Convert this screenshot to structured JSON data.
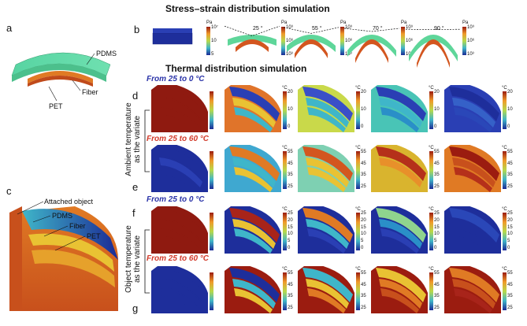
{
  "panels": {
    "a": "a",
    "b": "b",
    "c": "c",
    "d": "d",
    "e": "e",
    "f": "f",
    "g": "g"
  },
  "headings": {
    "stress": "Stress–strain distribution simulation",
    "thermal": "Thermal distribution simulation"
  },
  "subheadings": {
    "ambient_cool": "From 25 to 0 °C",
    "ambient_heat": "From 25 to 60 °C",
    "object_cool": "From 25 to 0 °C",
    "object_heat": "From 25 to 60 °C"
  },
  "side_labels": {
    "ambient": [
      "Ambient temperature",
      "as the variate"
    ],
    "object": [
      "Object temperature",
      "as the variate"
    ]
  },
  "panel_a_labels": {
    "pdms": "PDMS",
    "fiber": "Fiber",
    "pet": "PET"
  },
  "panel_c_labels": {
    "attached": "Attached object",
    "pdms": "PDMS",
    "fiber": "Fiber",
    "pet": "PET"
  },
  "stress_angles": [
    "25 °",
    "55 °",
    "70 °",
    "90 °"
  ],
  "stress_colorbar": {
    "unit": "Pa",
    "first_ticks": [
      "10⁷",
      "10",
      "5"
    ],
    "ticks": [
      "10⁹",
      "10⁶",
      "10³"
    ]
  },
  "thermal_colorbars": {
    "unit": "°C",
    "cool_ticks": [
      "20",
      "10",
      "0"
    ],
    "heat_ticks": [
      "55",
      "45",
      "35",
      "25"
    ],
    "cool_ticks_full": [
      "25",
      "20",
      "15",
      "10",
      "5",
      "0"
    ]
  },
  "colors": {
    "hot": "#9b1c10",
    "warm": "#d3561f",
    "mid": "#e9c233",
    "cool": "#3fb6c9",
    "cold": "#1b2a95",
    "pdms_green": "#5ed69a",
    "blue_heading": "#2a33a8",
    "red_heading": "#d23b2b"
  }
}
